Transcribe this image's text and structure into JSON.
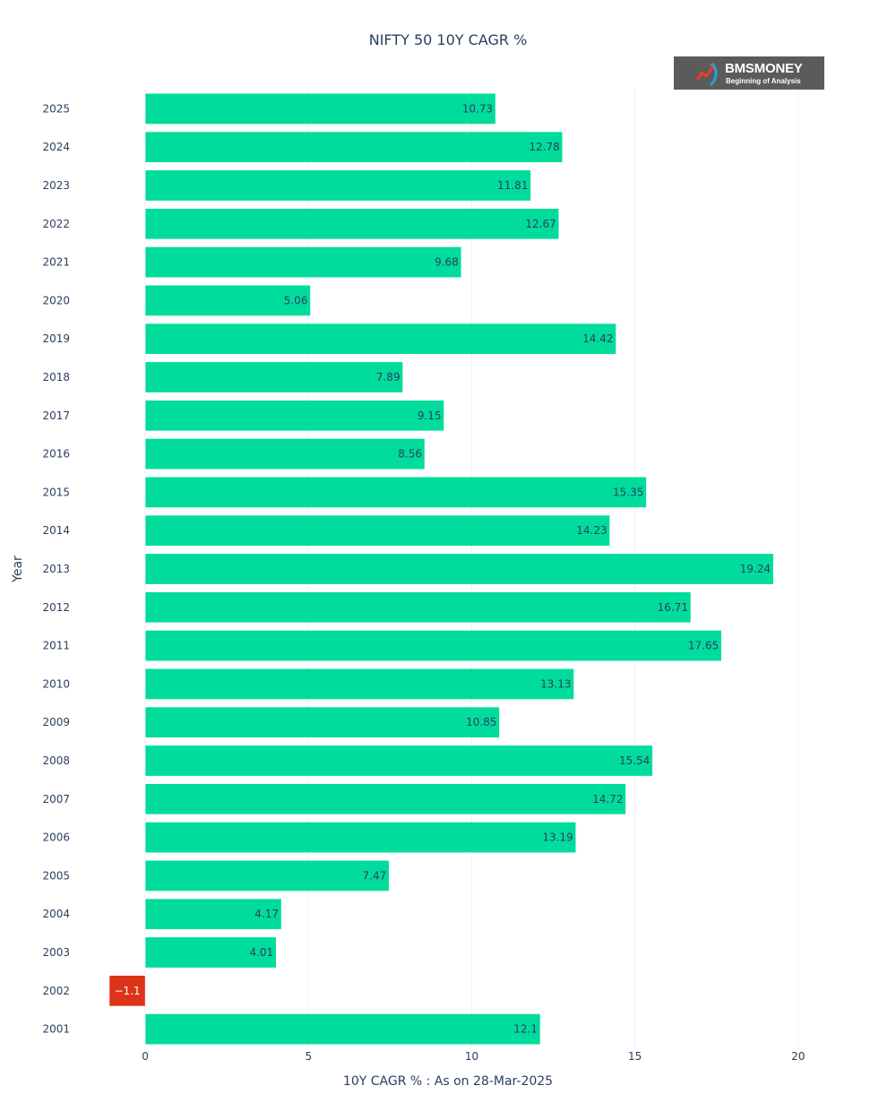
{
  "logo": {
    "name": "BMSMONEY",
    "tagline": "Beginning of Analysis"
  },
  "chart_data": {
    "type": "bar",
    "orientation": "horizontal",
    "title": "NIFTY 50 10Y CAGR %",
    "xlabel": "10Y CAGR % : As on 28-Mar-2025",
    "ylabel": "Year",
    "xlim": [
      -1.1,
      20.8
    ],
    "x_ticks": [
      0,
      5,
      10,
      15,
      20
    ],
    "grid": true,
    "colors": {
      "positive": "#00dc9c",
      "negative": "#dd3319"
    },
    "categories": [
      "2025",
      "2024",
      "2023",
      "2022",
      "2021",
      "2020",
      "2019",
      "2018",
      "2017",
      "2016",
      "2015",
      "2014",
      "2013",
      "2012",
      "2011",
      "2010",
      "2009",
      "2008",
      "2007",
      "2006",
      "2005",
      "2004",
      "2003",
      "2002",
      "2001"
    ],
    "values": [
      10.73,
      12.78,
      11.81,
      12.67,
      9.68,
      5.06,
      14.42,
      7.89,
      9.15,
      8.56,
      15.35,
      14.23,
      19.24,
      16.71,
      17.65,
      13.13,
      10.85,
      15.54,
      14.72,
      13.19,
      7.47,
      4.17,
      4.01,
      -1.1,
      12.1
    ],
    "data_labels": [
      "10.73",
      "12.78",
      "11.81",
      "12.67",
      "9.68",
      "5.06",
      "14.42",
      "7.89",
      "9.15",
      "8.56",
      "15.35",
      "14.23",
      "19.24",
      "16.71",
      "17.65",
      "13.13",
      "10.85",
      "15.54",
      "14.72",
      "13.19",
      "7.47",
      "4.17",
      "4.01",
      "−1.1",
      "12.1"
    ]
  }
}
